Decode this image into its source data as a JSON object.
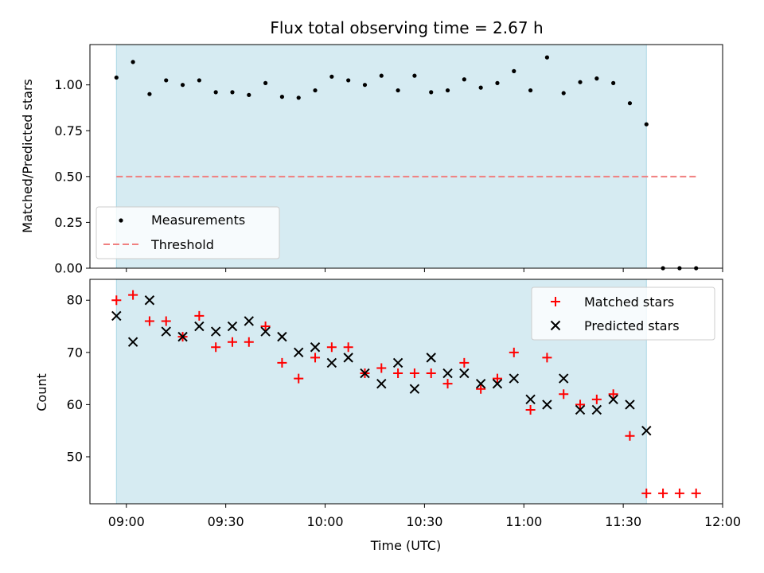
{
  "colors": {
    "shade": "#add8e6",
    "measurement": "#000000",
    "threshold": "#f08080",
    "matched": "#ff0000",
    "predicted": "#000000"
  },
  "chart_data": [
    {
      "type": "scatter",
      "title": "Flux total observing time = 2.67 h",
      "xlabel": "",
      "ylabel": "Matched/Predicted stars",
      "ylim": [
        0,
        1.22
      ],
      "yticks": [
        0.0,
        0.25,
        0.5,
        0.75,
        1.0
      ],
      "ytick_labels": [
        "0.00",
        "0.25",
        "0.50",
        "0.75",
        "1.00"
      ],
      "shaded_span": {
        "start": "08:57",
        "end": "11:37"
      },
      "grid": false,
      "legend_placement": "lower-left",
      "series": [
        {
          "name": "Measurements",
          "marker": "dot",
          "x": [
            "08:57",
            "09:02",
            "09:07",
            "09:12",
            "09:17",
            "09:22",
            "09:27",
            "09:32",
            "09:37",
            "09:42",
            "09:47",
            "09:52",
            "09:57",
            "10:02",
            "10:07",
            "10:12",
            "10:17",
            "10:22",
            "10:27",
            "10:32",
            "10:37",
            "10:42",
            "10:47",
            "10:52",
            "10:57",
            "11:02",
            "11:07",
            "11:12",
            "11:17",
            "11:22",
            "11:27",
            "11:32",
            "11:37",
            "11:42",
            "11:47",
            "11:52"
          ],
          "y": [
            1.04,
            1.125,
            0.95,
            1.025,
            1.0,
            1.025,
            0.96,
            0.96,
            0.945,
            1.01,
            0.935,
            0.93,
            0.97,
            1.045,
            1.025,
            1.0,
            1.05,
            0.97,
            1.05,
            0.96,
            0.97,
            1.03,
            0.985,
            1.01,
            1.075,
            0.97,
            1.15,
            0.955,
            1.015,
            1.035,
            1.01,
            0.9,
            0.785,
            0.0,
            0.0,
            0.0
          ]
        },
        {
          "name": "Threshold",
          "style": "dashed",
          "x": [
            "08:57",
            "11:52"
          ],
          "y": [
            0.5,
            0.5
          ]
        }
      ]
    },
    {
      "type": "scatter",
      "title": "",
      "xlabel": "Time (UTC)",
      "ylabel": "Count",
      "ylim": [
        41,
        84
      ],
      "yticks": [
        50,
        60,
        70,
        80
      ],
      "ytick_labels": [
        "50",
        "60",
        "70",
        "80"
      ],
      "xlim": [
        "08:49",
        "12:00"
      ],
      "xticks": [
        "09:00",
        "09:30",
        "10:00",
        "10:30",
        "11:00",
        "11:30",
        "12:00"
      ],
      "shaded_span": {
        "start": "08:57",
        "end": "11:37"
      },
      "grid": false,
      "legend_placement": "upper-right",
      "series": [
        {
          "name": "Matched stars",
          "marker": "plus",
          "x": [
            "08:57",
            "09:02",
            "09:07",
            "09:12",
            "09:17",
            "09:22",
            "09:27",
            "09:32",
            "09:37",
            "09:42",
            "09:47",
            "09:52",
            "09:57",
            "10:02",
            "10:07",
            "10:12",
            "10:17",
            "10:22",
            "10:27",
            "10:32",
            "10:37",
            "10:42",
            "10:47",
            "10:52",
            "10:57",
            "11:02",
            "11:07",
            "11:12",
            "11:17",
            "11:22",
            "11:27",
            "11:32",
            "11:37",
            "11:42",
            "11:47",
            "11:52"
          ],
          "y": [
            80,
            81,
            76,
            76,
            73,
            77,
            71,
            72,
            72,
            75,
            68,
            65,
            69,
            71,
            71,
            66,
            67,
            66,
            66,
            66,
            64,
            68,
            63,
            65,
            70,
            59,
            69,
            62,
            60,
            61,
            62,
            54,
            43,
            43,
            43,
            43
          ]
        },
        {
          "name": "Predicted stars",
          "marker": "x",
          "x": [
            "08:57",
            "09:02",
            "09:07",
            "09:12",
            "09:17",
            "09:22",
            "09:27",
            "09:32",
            "09:37",
            "09:42",
            "09:47",
            "09:52",
            "09:57",
            "10:02",
            "10:07",
            "10:12",
            "10:17",
            "10:22",
            "10:27",
            "10:32",
            "10:37",
            "10:42",
            "10:47",
            "10:52",
            "10:57",
            "11:02",
            "11:07",
            "11:12",
            "11:17",
            "11:22",
            "11:27",
            "11:32",
            "11:37"
          ],
          "y": [
            77,
            72,
            80,
            74,
            73,
            75,
            74,
            75,
            76,
            74,
            73,
            70,
            71,
            68,
            69,
            66,
            64,
            68,
            63,
            69,
            66,
            66,
            64,
            64,
            65,
            61,
            60,
            65,
            59,
            59,
            61,
            60,
            55
          ]
        }
      ]
    }
  ]
}
